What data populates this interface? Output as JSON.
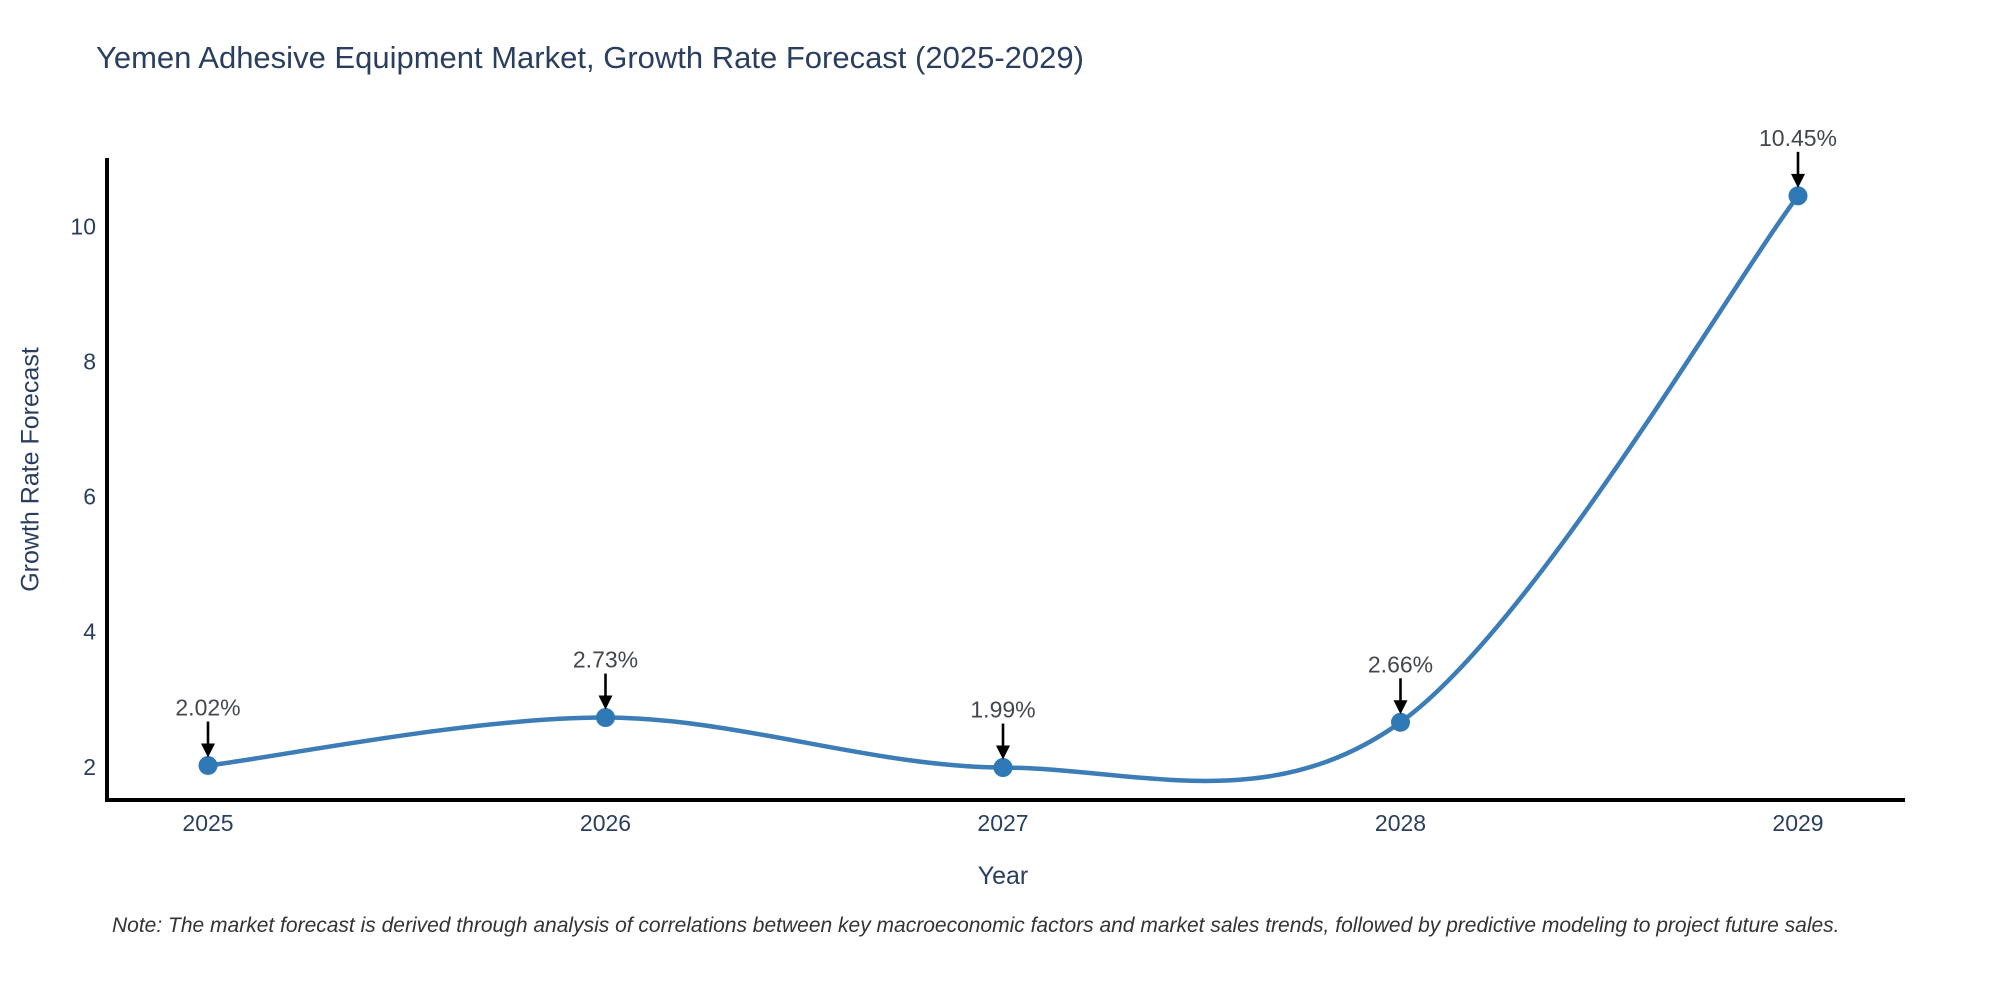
{
  "chart_data": {
    "type": "line",
    "title": "Yemen Adhesive Equipment Market, Growth Rate Forecast (2025-2029)",
    "categories": [
      "2025",
      "2026",
      "2027",
      "2028",
      "2029"
    ],
    "series": [
      {
        "name": "Growth Rate Forecast",
        "values": [
          2.02,
          2.73,
          1.99,
          2.66,
          10.45
        ]
      }
    ],
    "point_labels": [
      "2.02%",
      "2.73%",
      "1.99%",
      "2.66%",
      "10.45%"
    ],
    "xlabel": "Year",
    "ylabel": "Growth Rate Forecast",
    "yticks": [
      "2",
      "4",
      "6",
      "8",
      "10"
    ],
    "ytick_values": [
      2,
      4,
      6,
      8,
      10
    ],
    "ylim": [
      1.51,
      11.01
    ],
    "line_shape": "spline",
    "grid": false,
    "legend": false,
    "marker": "circle",
    "annotation_arrows": true
  },
  "footnote": {
    "text": "Note: The market forecast is derived through analysis of correlations between key macroeconomic factors and market sales trends, followed by predictive modeling to project future sales."
  },
  "colors": {
    "line": "#3c7db7",
    "marker": "#2e79b5",
    "axis": "#000000",
    "arrow": "#000000",
    "title_text": "#2a3f5f",
    "tick_text": "#2a3f5f",
    "annotation_text": "#43474d",
    "note_text": "#333333",
    "background": "#ffffff"
  }
}
